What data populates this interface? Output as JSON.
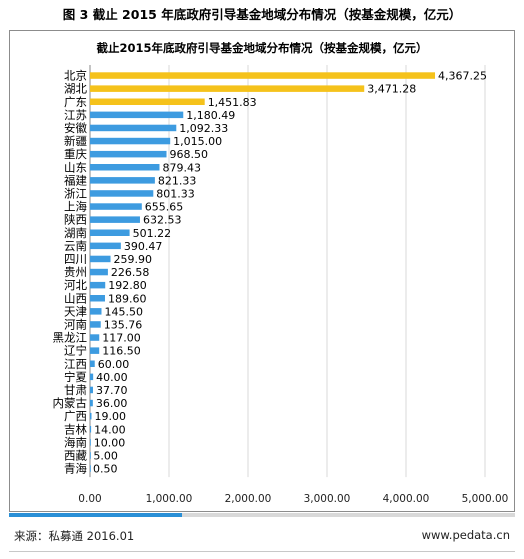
{
  "figure_caption": "图 3  截止 2015 年底政府引导基金地域分布情况（按基金规模，亿元）",
  "footer": {
    "source": "来源：私募通   2016.01",
    "website": "www.pedata.cn"
  },
  "colors": {
    "highlight_bar": "#f5c21b",
    "normal_bar": "#3d9be0",
    "accent_bar": "#2a8fd6",
    "grid": "#d9d9d9",
    "axis": "#888888"
  },
  "chart_data": {
    "type": "bar",
    "orientation": "horizontal",
    "title": "截止2015年底政府引导基金地域分布情况（按基金规模，亿元）",
    "xlabel": "",
    "ylabel": "",
    "xlim": [
      0,
      5000
    ],
    "xticks": [
      "0.00",
      "1,000.00",
      "2,000.00",
      "3,000.00",
      "4,000.00",
      "5,000.00"
    ],
    "grid": true,
    "legend": "none",
    "highlighted_categories": [
      "北京",
      "湖北",
      "广东"
    ],
    "categories": [
      "北京",
      "湖北",
      "广东",
      "江苏",
      "安徽",
      "新疆",
      "重庆",
      "山东",
      "福建",
      "浙江",
      "上海",
      "陕西",
      "湖南",
      "云南",
      "四川",
      "贵州",
      "河北",
      "山西",
      "天津",
      "河南",
      "黑龙江",
      "辽宁",
      "江西",
      "宁夏",
      "甘肃",
      "内蒙古",
      "广西",
      "吉林",
      "海南",
      "西藏",
      "青海"
    ],
    "values": [
      4367.25,
      3471.28,
      1451.83,
      1180.49,
      1092.33,
      1015.0,
      968.5,
      879.43,
      821.33,
      801.33,
      655.65,
      632.53,
      501.22,
      390.47,
      259.9,
      226.58,
      192.8,
      189.6,
      145.5,
      135.76,
      117.0,
      116.5,
      60.0,
      40.0,
      37.7,
      36.0,
      19.0,
      14.0,
      10.0,
      5.0,
      0.5
    ],
    "value_labels": [
      "4,367.25",
      "3,471.28",
      "1,451.83",
      "1,180.49",
      "1,092.33",
      "1,015.00",
      "968.50",
      "879.43",
      "821.33",
      "801.33",
      "655.65",
      "632.53",
      "501.22",
      "390.47",
      "259.90",
      "226.58",
      "192.80",
      "189.60",
      "145.50",
      "135.76",
      "117.00",
      "116.50",
      "60.00",
      "40.00",
      "37.70",
      "36.00",
      "19.00",
      "14.00",
      "10.00",
      "5.00",
      "0.50"
    ]
  }
}
